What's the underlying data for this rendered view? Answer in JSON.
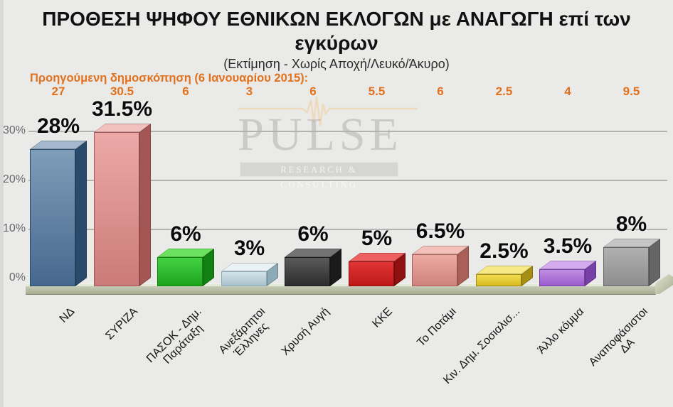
{
  "title": "ΠΡΟΘΕΣΗ ΨΗΦΟΥ ΕΘΝΙΚΩΝ ΕΚΛΟΓΩΝ με ΑΝΑΓΩΓΗ επί των εγκύρων",
  "subtitle": "(Εκτίμηση - Χωρίς Αποχή/Λευκό/Άκυρο)",
  "previous_poll": {
    "label": "Προηγούμενη δημοσκόπηση  (6 Ιανουαρίου 2015):",
    "date": "6 Ιανουαρίου 2015"
  },
  "watermark": {
    "name": "PULSE",
    "tagline": "RESEARCH & CONSULTING"
  },
  "colors": {
    "background": "#eaeae8",
    "previous_poll_accent": "#e2711d",
    "gridline": "#b2b2b0",
    "title_text": "#111111",
    "floor": "#b5bb9e"
  },
  "chart_data": {
    "type": "bar",
    "title": "ΠΡΟΘΕΣΗ ΨΗΦΟΥ ΕΘΝΙΚΩΝ ΕΚΛΟΓΩΝ με ΑΝΑΓΩΓΗ επί των εγκύρων",
    "subtitle": "(Εκτίμηση - Χωρίς Αποχή/Λευκό/Άκυρο)",
    "categories": [
      "ΝΔ",
      "ΣΥΡΙΖΑ",
      "ΠΑΣΟΚ - Δημ.\nΠαράταξη",
      "Ανεξάρτητοι\nΈλληνες",
      "Χρυσή Αυγή",
      "ΚΚΕ",
      "Το Ποτάμι",
      "Κιν. Δημ. Σοσιαλισ...",
      "Άλλο κόμμα",
      "Αναποφάσιστοι\nΔΑ"
    ],
    "series": [
      {
        "name": "Εκτίμηση",
        "values": [
          28,
          31.5,
          6,
          3,
          6,
          5,
          6.5,
          2.5,
          3.5,
          8
        ],
        "labels": [
          "28%",
          "31.5%",
          "6%",
          "3%",
          "6%",
          "5%",
          "6.5%",
          "2.5%",
          "3.5%",
          "8%"
        ]
      },
      {
        "name": "Προηγούμενη δημοσκόπηση (6 Ιανουαρίου 2015)",
        "values": [
          27,
          30.5,
          6,
          3,
          6,
          5.5,
          6,
          2.5,
          4,
          9.5
        ],
        "labels": [
          "27",
          "30.5",
          "6",
          "3",
          "6",
          "5.5",
          "6",
          "2.5",
          "4",
          "9.5"
        ]
      }
    ],
    "yticks": [
      {
        "label": "30%",
        "pct": 30
      },
      {
        "label": "20%",
        "pct": 20
      },
      {
        "label": "10%",
        "pct": 10
      },
      {
        "label": "0%",
        "pct": 0
      }
    ],
    "ylim": [
      0,
      35
    ],
    "grid": true,
    "legend_position": "none",
    "bar_colors": [
      {
        "front": [
          "#7f9db9",
          "#47688e"
        ],
        "side": "#2a4a6c",
        "top": "#a3b8cd"
      },
      {
        "front": [
          "#eca9a7",
          "#cb7b79"
        ],
        "side": "#a35653",
        "top": "#f2c0be"
      },
      {
        "front": [
          "#44d244",
          "#1da31d"
        ],
        "side": "#128012",
        "top": "#6ce25e"
      },
      {
        "front": [
          "#d3e2e9",
          "#a9c3ce"
        ],
        "side": "#8cabb7",
        "top": "#eaf2f5"
      },
      {
        "front": [
          "#5a5a5a",
          "#2d2d2d"
        ],
        "side": "#1a1a1a",
        "top": "#737373"
      },
      {
        "front": [
          "#e23434",
          "#bd1a1a"
        ],
        "side": "#8e1010",
        "top": "#ee5f5f"
      },
      {
        "front": [
          "#ecaaa2",
          "#cf837c"
        ],
        "side": "#aa6059",
        "top": "#f3c1b9"
      },
      {
        "front": [
          "#f2dc52",
          "#d7ba1f"
        ],
        "side": "#a68e12",
        "top": "#f7ea86"
      },
      {
        "front": [
          "#c18ee2",
          "#9a5ccd"
        ],
        "side": "#7640a6",
        "top": "#d3abee"
      },
      {
        "front": [
          "#b0b0b0",
          "#8d8d8d"
        ],
        "side": "#656565",
        "top": "#c6c6c6"
      }
    ]
  }
}
